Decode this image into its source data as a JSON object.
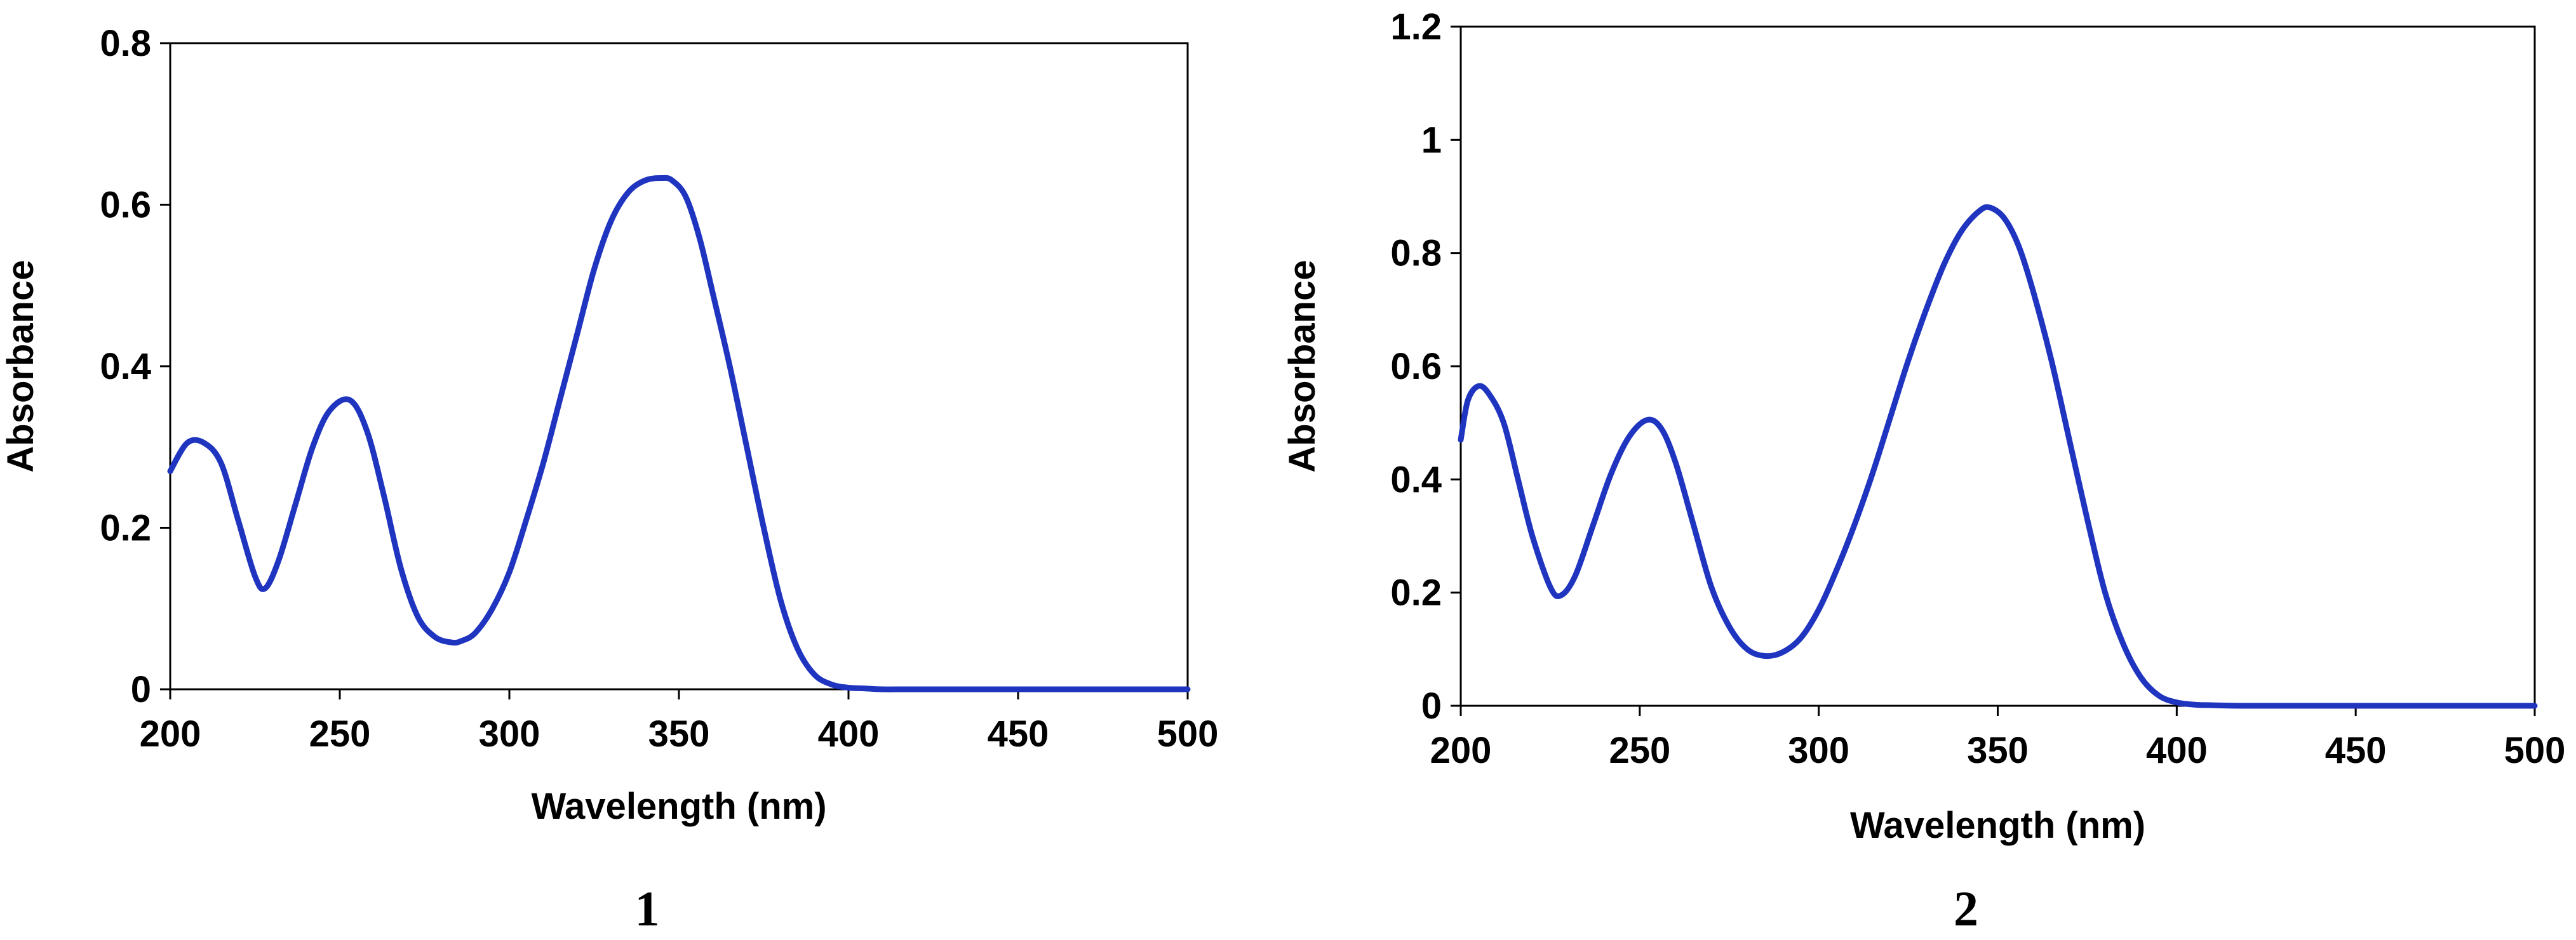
{
  "chart_data": [
    {
      "type": "line",
      "panel_label": "1",
      "xlabel": "Wavelength (nm)",
      "ylabel": "Absorbance",
      "xlim": [
        200,
        500
      ],
      "ylim": [
        0,
        0.8
      ],
      "xticks": [
        200,
        250,
        300,
        350,
        400,
        450,
        500
      ],
      "yticks": [
        0,
        0.2,
        0.4,
        0.6,
        0.8
      ],
      "xtick_labels": [
        "200",
        "250",
        "300",
        "350",
        "400",
        "450",
        "500"
      ],
      "ytick_labels": [
        "0",
        "0.2",
        "0.4",
        "0.6",
        "0.8"
      ],
      "grid": false,
      "line_color": "#1f35c0",
      "series": [
        {
          "x": [
            200,
            205,
            210,
            215,
            220,
            225,
            228,
            232,
            237,
            242,
            247,
            253,
            258,
            263,
            268,
            273,
            278,
            283,
            286,
            290,
            295,
            300,
            305,
            310,
            315,
            320,
            325,
            330,
            335,
            340,
            345,
            348,
            352,
            356,
            360,
            365,
            370,
            375,
            380,
            385,
            390,
            395,
            400,
            405,
            410,
            420,
            450,
            500
          ],
          "y": [
            0.27,
            0.305,
            0.305,
            0.28,
            0.21,
            0.14,
            0.125,
            0.16,
            0.23,
            0.3,
            0.345,
            0.358,
            0.32,
            0.24,
            0.15,
            0.09,
            0.065,
            0.058,
            0.06,
            0.07,
            0.1,
            0.145,
            0.21,
            0.28,
            0.36,
            0.44,
            0.52,
            0.58,
            0.615,
            0.63,
            0.633,
            0.63,
            0.61,
            0.56,
            0.49,
            0.4,
            0.3,
            0.2,
            0.11,
            0.05,
            0.018,
            0.006,
            0.002,
            0.001,
            0.0,
            0.0,
            0.0,
            0.0
          ]
        }
      ]
    },
    {
      "type": "line",
      "panel_label": "2",
      "xlabel": "Wavelength (nm)",
      "ylabel": "Absorbance",
      "xlim": [
        200,
        500
      ],
      "ylim": [
        0,
        1.2
      ],
      "xticks": [
        200,
        250,
        300,
        350,
        400,
        450,
        500
      ],
      "yticks": [
        0,
        0.2,
        0.4,
        0.6,
        0.8,
        1.0,
        1.2
      ],
      "xtick_labels": [
        "200",
        "250",
        "300",
        "350",
        "400",
        "450",
        "500"
      ],
      "ytick_labels": [
        "0",
        "0.2",
        "0.4",
        "0.6",
        "0.8",
        "1",
        "1.2"
      ],
      "grid": false,
      "line_color": "#1f35c0",
      "series": [
        {
          "x": [
            200,
            202,
            205,
            208,
            212,
            216,
            220,
            225,
            228,
            232,
            237,
            242,
            247,
            252,
            256,
            260,
            265,
            270,
            275,
            280,
            285,
            290,
            295,
            300,
            305,
            310,
            315,
            320,
            325,
            330,
            335,
            340,
            345,
            348,
            352,
            356,
            360,
            365,
            370,
            375,
            380,
            385,
            390,
            395,
            400,
            405,
            410,
            420,
            450,
            500
          ],
          "y": [
            0.47,
            0.54,
            0.565,
            0.55,
            0.5,
            0.4,
            0.3,
            0.21,
            0.195,
            0.23,
            0.32,
            0.41,
            0.475,
            0.505,
            0.49,
            0.43,
            0.32,
            0.21,
            0.14,
            0.1,
            0.088,
            0.095,
            0.12,
            0.17,
            0.24,
            0.32,
            0.41,
            0.51,
            0.61,
            0.7,
            0.78,
            0.84,
            0.875,
            0.88,
            0.86,
            0.81,
            0.73,
            0.61,
            0.47,
            0.33,
            0.2,
            0.11,
            0.05,
            0.018,
            0.006,
            0.002,
            0.001,
            0.0,
            0.0,
            0.0
          ]
        }
      ]
    }
  ]
}
